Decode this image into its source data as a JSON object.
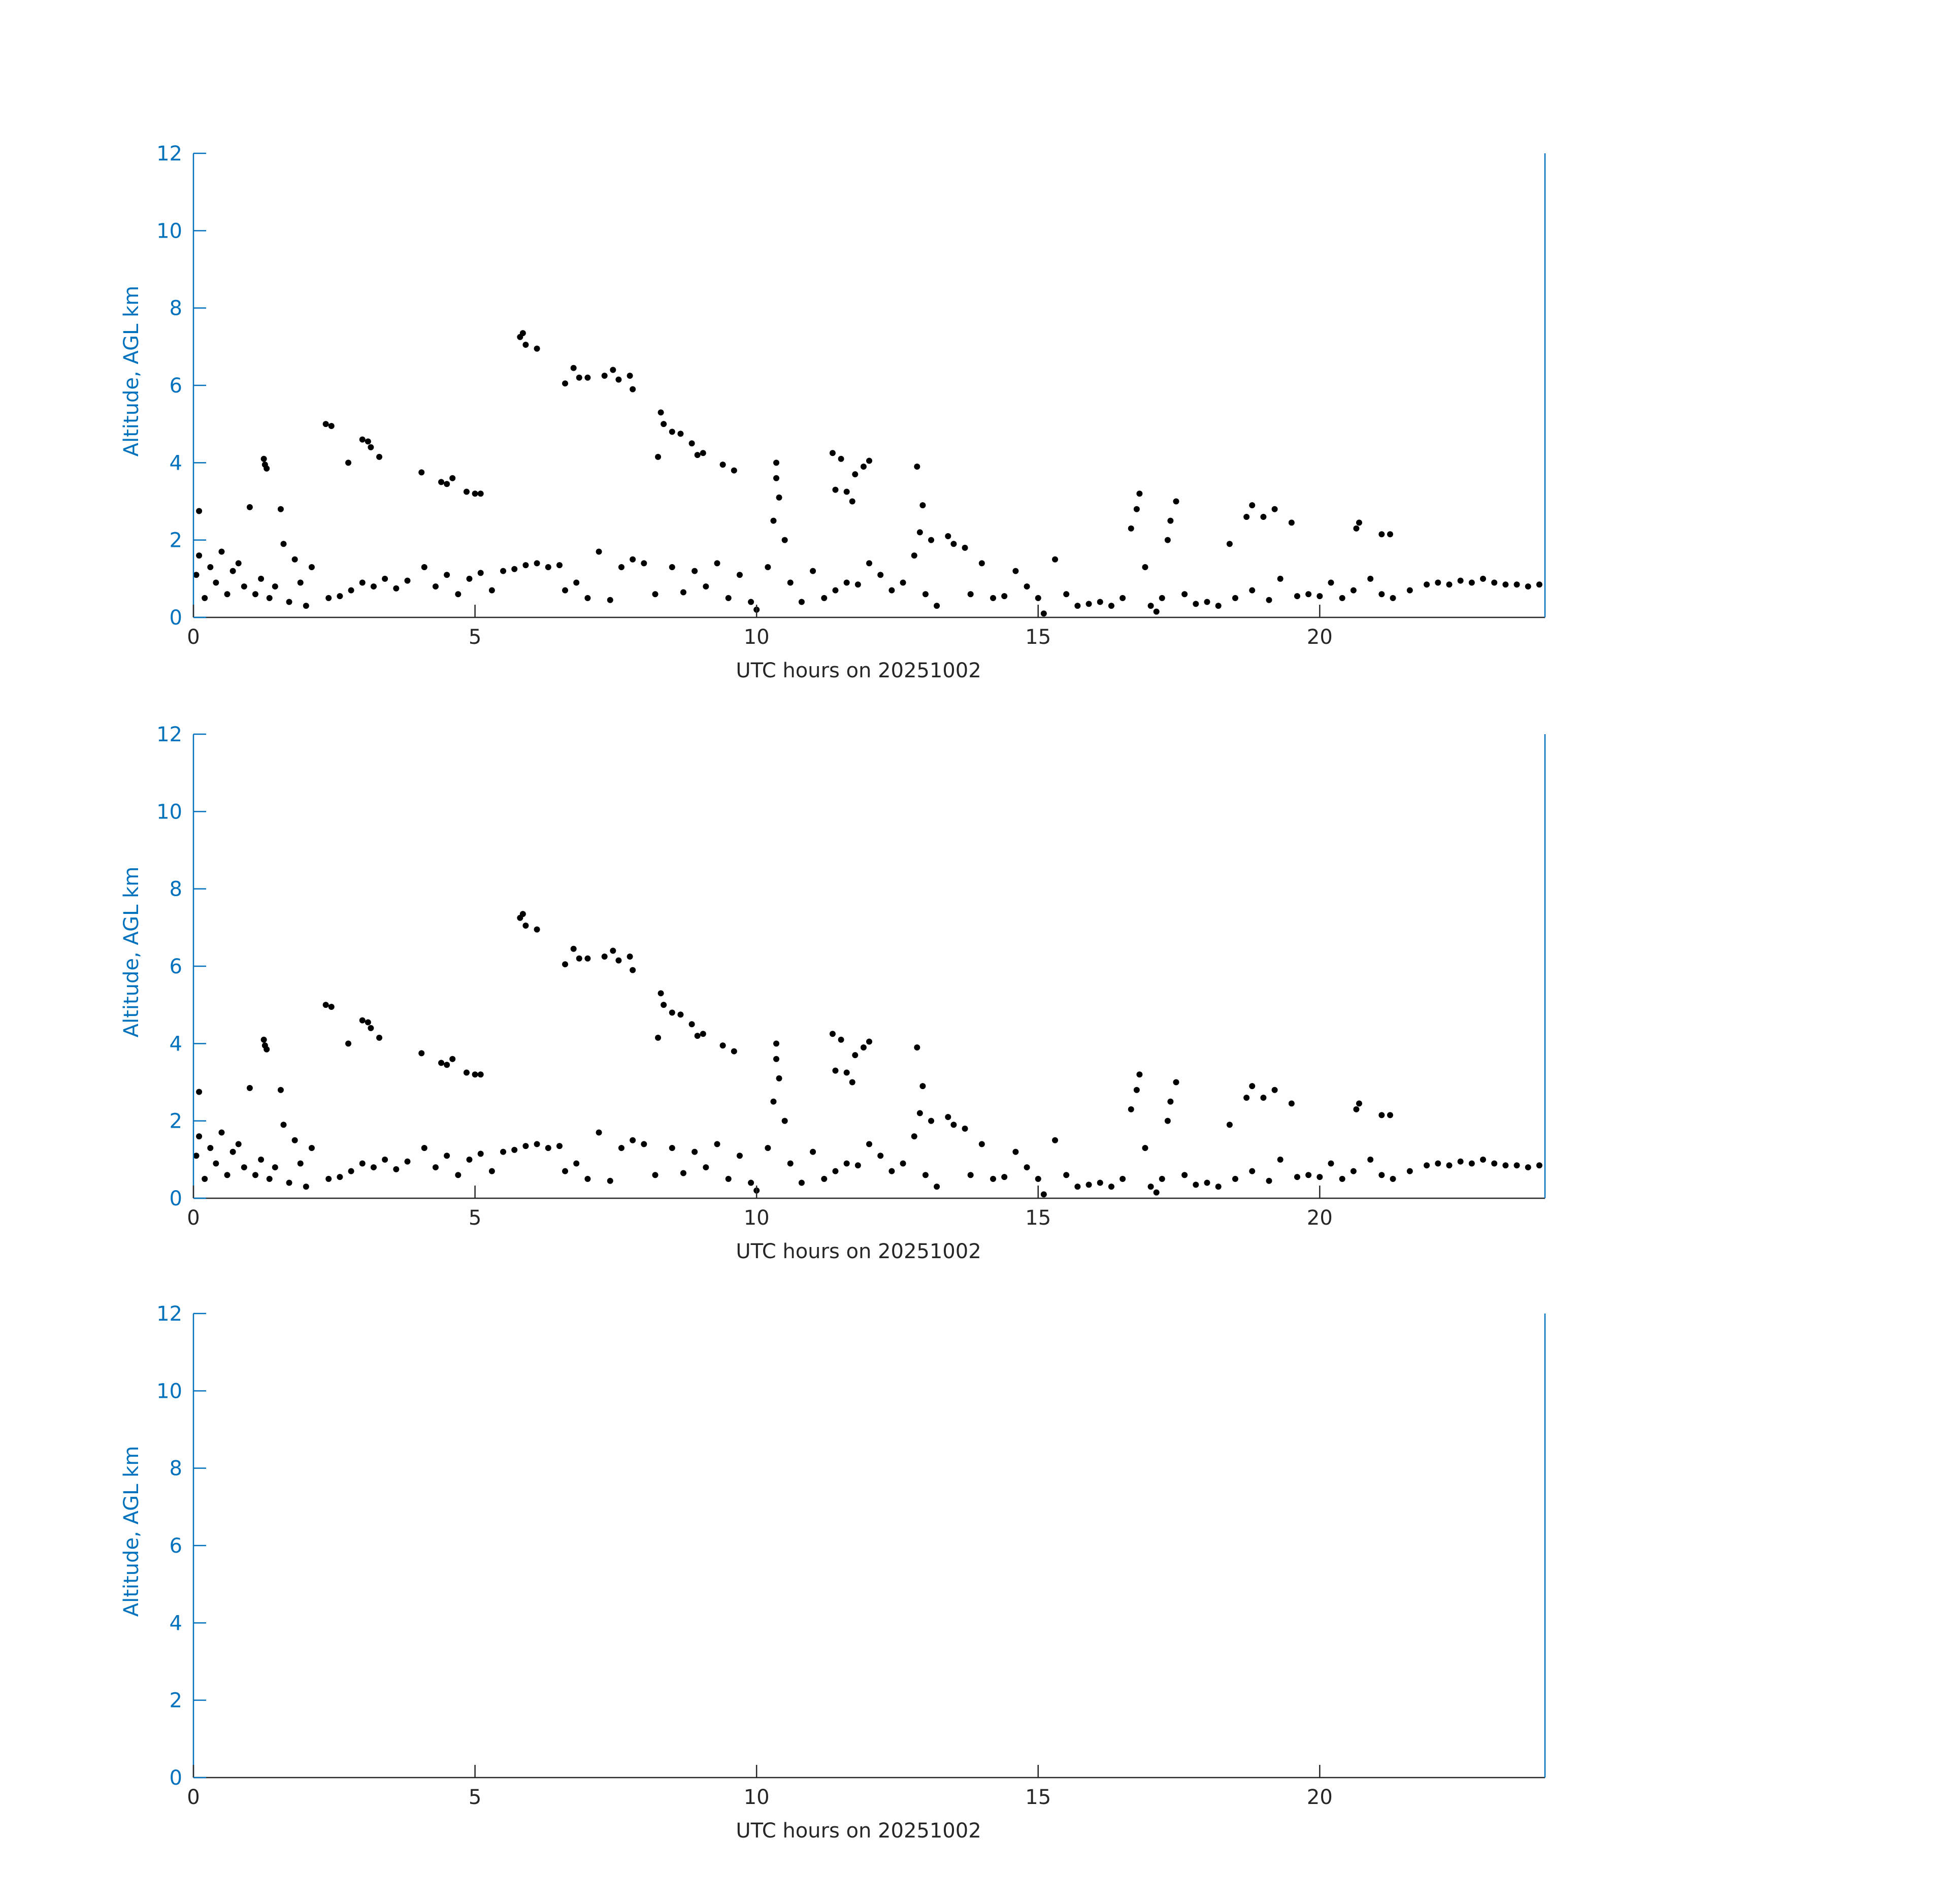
{
  "chart_data": [
    {
      "type": "scatter",
      "xlabel": "UTC hours on 20251002",
      "ylabel": "Altitude, AGL km",
      "xlim": [
        0,
        24
      ],
      "ylim": [
        0,
        12
      ],
      "xticks": [
        0,
        5,
        10,
        15,
        20
      ],
      "yticks": [
        0,
        2,
        4,
        6,
        8,
        10,
        12
      ],
      "color": "#000000",
      "y_axis_color": "#0072bd",
      "x_axis_color": "#262626",
      "x": [
        1.25,
        1.27,
        1.3,
        2.35,
        2.45,
        2.75,
        3.0,
        3.1,
        3.15,
        3.3,
        4.05,
        4.4,
        4.5,
        4.6,
        4.85,
        5.0,
        5.1,
        5.8,
        5.85,
        5.9,
        6.1,
        6.6,
        6.75,
        6.85,
        7.0,
        7.3,
        7.45,
        7.55,
        7.75,
        7.8,
        8.25,
        8.3,
        8.35,
        8.5,
        8.65,
        8.85,
        8.95,
        9.05,
        9.4,
        9.6,
        10.35,
        10.35,
        10.4,
        11.35,
        11.5,
        11.4,
        11.6,
        11.7,
        11.75,
        11.9,
        12.0,
        12.85,
        12.95,
        12.9,
        16.65,
        16.75,
        16.8,
        17.35,
        17.45,
        17.3,
        18.7,
        18.8,
        19.0,
        19.2,
        19.5,
        20.65,
        20.7,
        21.1,
        21.25,
        0.1,
        1.0,
        1.55,
        10.3,
        13.1,
        13.4,
        13.7,
        18.4,
        0.05,
        0.1,
        0.2,
        0.3,
        0.4,
        0.5,
        0.6,
        0.7,
        0.8,
        0.9,
        1.1,
        1.2,
        1.35,
        1.45,
        1.6,
        1.7,
        1.8,
        1.9,
        2.0,
        2.1,
        2.4,
        2.6,
        2.8,
        3.0,
        3.2,
        3.4,
        3.6,
        3.8,
        4.1,
        4.3,
        4.5,
        4.7,
        4.9,
        5.1,
        5.3,
        5.5,
        5.7,
        5.9,
        6.1,
        6.3,
        6.5,
        6.6,
        6.8,
        7.0,
        7.2,
        7.4,
        7.6,
        7.8,
        8.0,
        8.2,
        8.5,
        8.7,
        8.9,
        9.1,
        9.3,
        9.5,
        9.7,
        9.9,
        10.0,
        10.2,
        10.5,
        10.6,
        10.8,
        11.0,
        11.2,
        11.4,
        11.6,
        11.8,
        12.0,
        12.2,
        12.4,
        12.6,
        12.8,
        13.0,
        13.2,
        13.5,
        13.8,
        14.0,
        14.2,
        14.4,
        14.6,
        14.8,
        15.0,
        15.1,
        15.3,
        15.5,
        15.7,
        15.9,
        16.1,
        16.3,
        16.5,
        16.9,
        17.0,
        17.1,
        17.2,
        17.6,
        17.8,
        18.0,
        18.2,
        18.5,
        18.8,
        19.1,
        19.3,
        19.6,
        19.8,
        20.0,
        20.2,
        20.4,
        20.6,
        20.9,
        21.1,
        21.3,
        21.6,
        21.9,
        22.1,
        22.3,
        22.5,
        22.7,
        22.9,
        23.1,
        23.3,
        23.5,
        23.7,
        23.9
      ],
      "values": [
        4.1,
        3.95,
        3.85,
        5.0,
        4.95,
        4.0,
        4.6,
        4.55,
        4.4,
        4.15,
        3.75,
        3.5,
        3.45,
        3.6,
        3.25,
        3.2,
        3.2,
        7.25,
        7.35,
        7.05,
        6.95,
        6.05,
        6.45,
        6.2,
        6.2,
        6.25,
        6.4,
        6.15,
        6.25,
        5.9,
        4.15,
        5.3,
        5.0,
        4.8,
        4.75,
        4.5,
        4.2,
        4.25,
        3.95,
        3.8,
        4.0,
        3.6,
        3.1,
        4.25,
        4.1,
        3.3,
        3.25,
        3.0,
        3.7,
        3.9,
        4.05,
        3.9,
        2.9,
        2.2,
        2.3,
        2.8,
        3.2,
        2.5,
        3.0,
        2.0,
        2.6,
        2.9,
        2.6,
        2.8,
        2.45,
        2.3,
        2.45,
        2.15,
        2.15,
        2.75,
        2.85,
        2.8,
        2.5,
        2.0,
        2.1,
        1.8,
        1.9,
        1.1,
        1.6,
        0.5,
        1.3,
        0.9,
        1.7,
        0.6,
        1.2,
        1.4,
        0.8,
        0.6,
        1.0,
        0.5,
        0.8,
        1.9,
        0.4,
        1.5,
        0.9,
        0.3,
        1.3,
        0.5,
        0.55,
        0.7,
        0.9,
        0.8,
        1.0,
        0.75,
        0.95,
        1.3,
        0.8,
        1.1,
        0.6,
        1.0,
        1.15,
        0.7,
        1.2,
        1.25,
        1.35,
        1.4,
        1.3,
        1.35,
        0.7,
        0.9,
        0.5,
        1.7,
        0.45,
        1.3,
        1.5,
        1.4,
        0.6,
        1.3,
        0.65,
        1.2,
        0.8,
        1.4,
        0.5,
        1.1,
        0.4,
        0.2,
        1.3,
        2.0,
        0.9,
        0.4,
        1.2,
        0.5,
        0.7,
        0.9,
        0.85,
        1.4,
        1.1,
        0.7,
        0.9,
        1.6,
        0.6,
        0.3,
        1.9,
        0.6,
        1.4,
        0.5,
        0.55,
        1.2,
        0.8,
        0.5,
        0.1,
        1.5,
        0.6,
        0.3,
        0.35,
        0.4,
        0.3,
        0.5,
        1.3,
        0.3,
        0.15,
        0.5,
        0.6,
        0.35,
        0.4,
        0.3,
        0.5,
        0.7,
        0.45,
        1.0,
        0.55,
        0.6,
        0.55,
        0.9,
        0.5,
        0.7,
        1.0,
        0.6,
        0.5,
        0.7,
        0.85,
        0.9,
        0.85,
        0.95,
        0.9,
        1.0,
        0.9,
        0.85,
        0.85,
        0.8,
        0.85
      ]
    },
    {
      "type": "scatter",
      "xlabel": "UTC hours on 20251002",
      "ylabel": "Altitude, AGL km",
      "xlim": [
        0,
        24
      ],
      "ylim": [
        0,
        12
      ],
      "xticks": [
        0,
        5,
        10,
        15,
        20
      ],
      "yticks": [
        0,
        2,
        4,
        6,
        8,
        10,
        12
      ],
      "color": "#000000",
      "y_axis_color": "#0072bd",
      "x_axis_color": "#262626",
      "x": [
        1.25,
        1.27,
        1.3,
        2.35,
        2.45,
        2.75,
        3.0,
        3.1,
        3.15,
        3.3,
        4.05,
        4.4,
        4.5,
        4.6,
        4.85,
        5.0,
        5.1,
        5.8,
        5.85,
        5.9,
        6.1,
        6.6,
        6.75,
        6.85,
        7.0,
        7.3,
        7.45,
        7.55,
        7.75,
        7.8,
        8.25,
        8.3,
        8.35,
        8.5,
        8.65,
        8.85,
        8.95,
        9.05,
        9.4,
        9.6,
        10.35,
        10.35,
        10.4,
        11.35,
        11.5,
        11.4,
        11.6,
        11.7,
        11.75,
        11.9,
        12.0,
        12.85,
        12.95,
        12.9,
        16.65,
        16.75,
        16.8,
        17.35,
        17.45,
        17.3,
        18.7,
        18.8,
        19.0,
        19.2,
        19.5,
        20.65,
        20.7,
        21.1,
        21.25,
        0.1,
        1.0,
        1.55,
        10.3,
        13.1,
        13.4,
        13.7,
        18.4,
        0.05,
        0.1,
        0.2,
        0.3,
        0.4,
        0.5,
        0.6,
        0.7,
        0.8,
        0.9,
        1.1,
        1.2,
        1.35,
        1.45,
        1.6,
        1.7,
        1.8,
        1.9,
        2.0,
        2.1,
        2.4,
        2.6,
        2.8,
        3.0,
        3.2,
        3.4,
        3.6,
        3.8,
        4.1,
        4.3,
        4.5,
        4.7,
        4.9,
        5.1,
        5.3,
        5.5,
        5.7,
        5.9,
        6.1,
        6.3,
        6.5,
        6.6,
        6.8,
        7.0,
        7.2,
        7.4,
        7.6,
        7.8,
        8.0,
        8.2,
        8.5,
        8.7,
        8.9,
        9.1,
        9.3,
        9.5,
        9.7,
        9.9,
        10.0,
        10.2,
        10.5,
        10.6,
        10.8,
        11.0,
        11.2,
        11.4,
        11.6,
        11.8,
        12.0,
        12.2,
        12.4,
        12.6,
        12.8,
        13.0,
        13.2,
        13.5,
        13.8,
        14.0,
        14.2,
        14.4,
        14.6,
        14.8,
        15.0,
        15.1,
        15.3,
        15.5,
        15.7,
        15.9,
        16.1,
        16.3,
        16.5,
        16.9,
        17.0,
        17.1,
        17.2,
        17.6,
        17.8,
        18.0,
        18.2,
        18.5,
        18.8,
        19.1,
        19.3,
        19.6,
        19.8,
        20.0,
        20.2,
        20.4,
        20.6,
        20.9,
        21.1,
        21.3,
        21.6,
        21.9,
        22.1,
        22.3,
        22.5,
        22.7,
        22.9,
        23.1,
        23.3,
        23.5,
        23.7,
        23.9
      ],
      "values": [
        4.1,
        3.95,
        3.85,
        5.0,
        4.95,
        4.0,
        4.6,
        4.55,
        4.4,
        4.15,
        3.75,
        3.5,
        3.45,
        3.6,
        3.25,
        3.2,
        3.2,
        7.25,
        7.35,
        7.05,
        6.95,
        6.05,
        6.45,
        6.2,
        6.2,
        6.25,
        6.4,
        6.15,
        6.25,
        5.9,
        4.15,
        5.3,
        5.0,
        4.8,
        4.75,
        4.5,
        4.2,
        4.25,
        3.95,
        3.8,
        4.0,
        3.6,
        3.1,
        4.25,
        4.1,
        3.3,
        3.25,
        3.0,
        3.7,
        3.9,
        4.05,
        3.9,
        2.9,
        2.2,
        2.3,
        2.8,
        3.2,
        2.5,
        3.0,
        2.0,
        2.6,
        2.9,
        2.6,
        2.8,
        2.45,
        2.3,
        2.45,
        2.15,
        2.15,
        2.75,
        2.85,
        2.8,
        2.5,
        2.0,
        2.1,
        1.8,
        1.9,
        1.1,
        1.6,
        0.5,
        1.3,
        0.9,
        1.7,
        0.6,
        1.2,
        1.4,
        0.8,
        0.6,
        1.0,
        0.5,
        0.8,
        1.9,
        0.4,
        1.5,
        0.9,
        0.3,
        1.3,
        0.5,
        0.55,
        0.7,
        0.9,
        0.8,
        1.0,
        0.75,
        0.95,
        1.3,
        0.8,
        1.1,
        0.6,
        1.0,
        1.15,
        0.7,
        1.2,
        1.25,
        1.35,
        1.4,
        1.3,
        1.35,
        0.7,
        0.9,
        0.5,
        1.7,
        0.45,
        1.3,
        1.5,
        1.4,
        0.6,
        1.3,
        0.65,
        1.2,
        0.8,
        1.4,
        0.5,
        1.1,
        0.4,
        0.2,
        1.3,
        2.0,
        0.9,
        0.4,
        1.2,
        0.5,
        0.7,
        0.9,
        0.85,
        1.4,
        1.1,
        0.7,
        0.9,
        1.6,
        0.6,
        0.3,
        1.9,
        0.6,
        1.4,
        0.5,
        0.55,
        1.2,
        0.8,
        0.5,
        0.1,
        1.5,
        0.6,
        0.3,
        0.35,
        0.4,
        0.3,
        0.5,
        1.3,
        0.3,
        0.15,
        0.5,
        0.6,
        0.35,
        0.4,
        0.3,
        0.5,
        0.7,
        0.45,
        1.0,
        0.55,
        0.6,
        0.55,
        0.9,
        0.5,
        0.7,
        1.0,
        0.6,
        0.5,
        0.7,
        0.85,
        0.9,
        0.85,
        0.95,
        0.9,
        1.0,
        0.9,
        0.85,
        0.85,
        0.8,
        0.85
      ]
    },
    {
      "type": "scatter",
      "xlabel": "UTC hours on 20251002",
      "ylabel": "Altitude, AGL km",
      "xlim": [
        0,
        24
      ],
      "ylim": [
        0,
        12
      ],
      "xticks": [
        0,
        5,
        10,
        15,
        20
      ],
      "yticks": [
        0,
        2,
        4,
        6,
        8,
        10,
        12
      ],
      "color": "#000000",
      "y_axis_color": "#0072bd",
      "x_axis_color": "#262626",
      "x": [],
      "values": []
    }
  ]
}
